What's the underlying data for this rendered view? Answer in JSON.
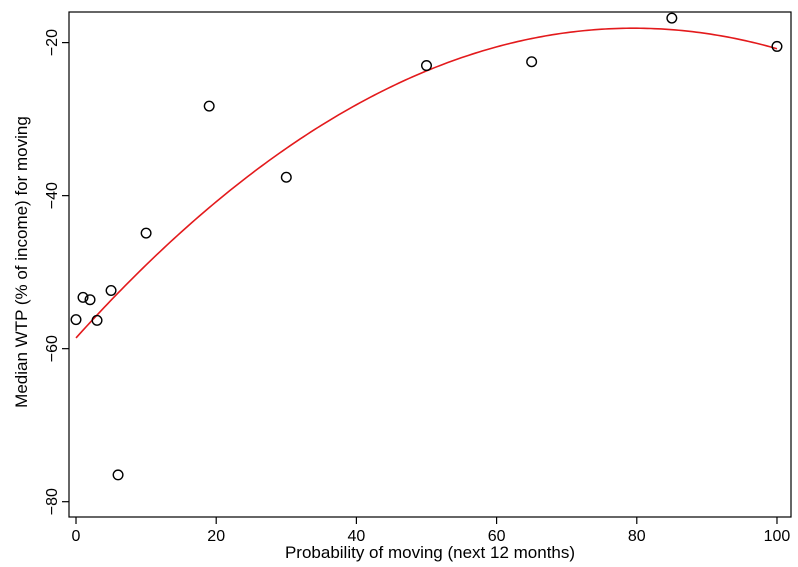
{
  "chart_data": {
    "type": "scatter",
    "title": "",
    "xlabel": "Probability of moving (next 12 months)",
    "ylabel": "Median WTP (% of income) for moving",
    "xlim": [
      -1,
      102
    ],
    "ylim": [
      -82,
      -16
    ],
    "x_ticks": [
      0,
      20,
      40,
      60,
      80,
      100
    ],
    "y_ticks": [
      -80,
      -60,
      -40,
      -20
    ],
    "x_tick_labels": [
      "0",
      "20",
      "40",
      "60",
      "80",
      "100"
    ],
    "y_tick_labels": [
      "−80",
      "−60",
      "−40",
      "−20"
    ],
    "grid": false,
    "legend": "none",
    "points": [
      {
        "x": 0,
        "y": -56.2
      },
      {
        "x": 1,
        "y": -53.3
      },
      {
        "x": 2,
        "y": -53.6
      },
      {
        "x": 3,
        "y": -56.3
      },
      {
        "x": 5,
        "y": -52.4
      },
      {
        "x": 6,
        "y": -76.5
      },
      {
        "x": 10,
        "y": -44.9
      },
      {
        "x": 19,
        "y": -28.3
      },
      {
        "x": 30,
        "y": -37.6
      },
      {
        "x": 50,
        "y": -23.0
      },
      {
        "x": 65,
        "y": -22.5
      },
      {
        "x": 85,
        "y": -16.8
      },
      {
        "x": 100,
        "y": -20.5
      }
    ],
    "fit": {
      "type": "quadratic",
      "x_range": [
        0,
        100
      ],
      "coefficients": {
        "a": -0.0064,
        "b": 1.018,
        "c": -58.6
      }
    },
    "colors": {
      "points": "#000000",
      "fit": "#e31a1c",
      "axes": "#000000"
    }
  }
}
